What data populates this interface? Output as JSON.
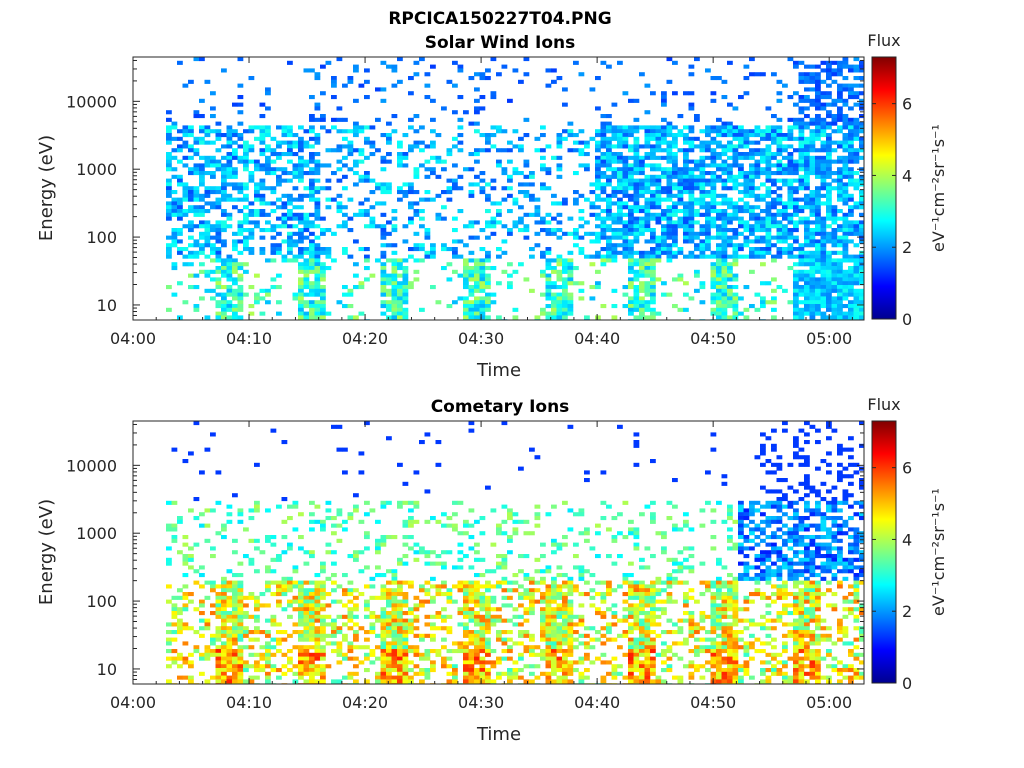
{
  "figure_title": "RPCICA150227T04.PNG",
  "colors": {
    "colormap": [
      "#00008f",
      "#0000ff",
      "#0080ff",
      "#00ffff",
      "#80ff80",
      "#ffff00",
      "#ff8000",
      "#ff0000",
      "#800000"
    ],
    "axes": "#262626",
    "background": "#ffffff"
  },
  "chart_data": [
    {
      "type": "heatmap",
      "title": "Solar Wind Ions",
      "xlabel": "Time",
      "ylabel": "Energy (eV)",
      "x_ticks": [
        "04:00",
        "04:10",
        "04:20",
        "04:30",
        "04:40",
        "04:50",
        "05:00"
      ],
      "y_ticks": [
        "10",
        "100",
        "1000",
        "10000"
      ],
      "y_scale": "log",
      "ylim": [
        6,
        45000
      ],
      "xlim": [
        "04:00",
        "05:03"
      ],
      "colorbar": {
        "title": "Flux",
        "label": "eV⁻¹cm⁻²sr⁻¹s⁻¹",
        "ticks": [
          "0",
          "2",
          "4",
          "6"
        ],
        "range": [
          0,
          7.3
        ],
        "colormap": "jet"
      }
    },
    {
      "type": "heatmap",
      "title": "Cometary Ions",
      "xlabel": "Time",
      "ylabel": "Energy (eV)",
      "x_ticks": [
        "04:00",
        "04:10",
        "04:20",
        "04:30",
        "04:40",
        "04:50",
        "05:00"
      ],
      "y_ticks": [
        "10",
        "100",
        "1000",
        "10000"
      ],
      "y_scale": "log",
      "ylim": [
        6,
        45000
      ],
      "xlim": [
        "04:00",
        "05:03"
      ],
      "colorbar": {
        "title": "Flux",
        "label": "eV⁻¹cm⁻²sr⁻¹s⁻¹",
        "ticks": [
          "0",
          "2",
          "4",
          "6"
        ],
        "range": [
          0,
          7.3
        ],
        "colormap": "jet"
      }
    }
  ]
}
